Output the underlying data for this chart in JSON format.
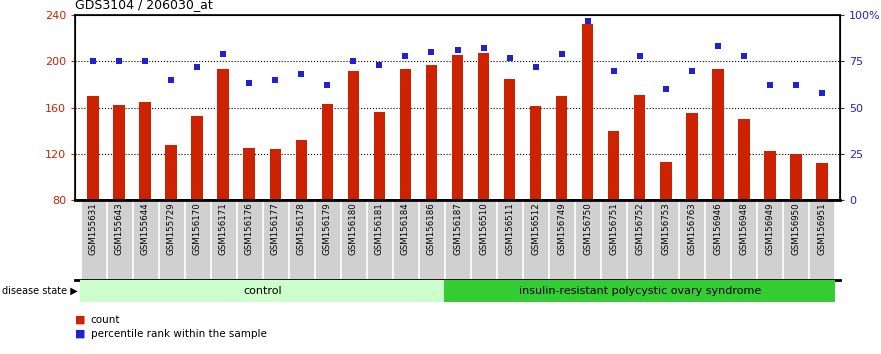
{
  "title": "GDS3104 / 206030_at",
  "samples": [
    "GSM155631",
    "GSM155643",
    "GSM155644",
    "GSM155729",
    "GSM156170",
    "GSM156171",
    "GSM156176",
    "GSM156177",
    "GSM156178",
    "GSM156179",
    "GSM156180",
    "GSM156181",
    "GSM156184",
    "GSM156186",
    "GSM156187",
    "GSM156510",
    "GSM156511",
    "GSM156512",
    "GSM156749",
    "GSM156750",
    "GSM156751",
    "GSM156752",
    "GSM156753",
    "GSM156763",
    "GSM156946",
    "GSM156948",
    "GSM156949",
    "GSM156950",
    "GSM156951"
  ],
  "counts": [
    170,
    162,
    165,
    128,
    153,
    193,
    125,
    124,
    132,
    163,
    192,
    156,
    193,
    197,
    205,
    207,
    185,
    161,
    170,
    232,
    140,
    171,
    113,
    155,
    193,
    150,
    122,
    120,
    112
  ],
  "percentiles": [
    75,
    75,
    75,
    65,
    72,
    79,
    63,
    65,
    68,
    62,
    75,
    73,
    78,
    80,
    81,
    82,
    77,
    72,
    79,
    97,
    70,
    78,
    60,
    70,
    83,
    78,
    62,
    62,
    58
  ],
  "group_control_count": 14,
  "ylim_left": [
    80,
    240
  ],
  "ylim_right": [
    0,
    100
  ],
  "yticks_left": [
    80,
    120,
    160,
    200,
    240
  ],
  "yticks_right": [
    0,
    25,
    50,
    75,
    100
  ],
  "ytick_right_labels": [
    "0",
    "25",
    "50",
    "75",
    "100%"
  ],
  "hgrid_lines": [
    120,
    160,
    200
  ],
  "bar_color": "#cc2200",
  "dot_color": "#2222cc",
  "control_fill": "#ccffcc",
  "pcos_fill": "#33cc33",
  "tick_box_fill": "#d0d0d0",
  "tick_box_edge": "#ffffff"
}
